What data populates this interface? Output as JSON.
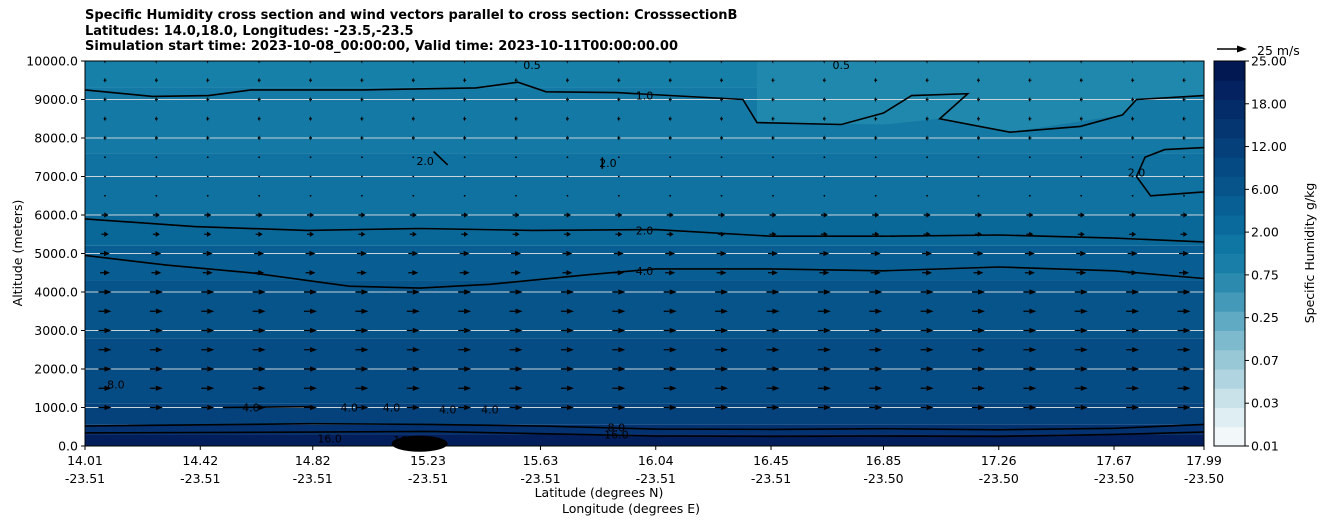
{
  "chart_data": {
    "type": "contour",
    "title_lines": [
      "Specific Humidity cross section and wind vectors parallel to cross section: CrosssectionB",
      "Latitudes: 14.0,18.0, Longitudes: -23.5,-23.5",
      "Simulation start time: 2023-10-08_00:00:00, Valid time: 2023-10-11T00:00:00.00"
    ],
    "ylabel": "Altitude (meters)",
    "xlabel_lines": [
      "Latitude (degrees N)",
      "Longitude (degrees E)"
    ],
    "ylim": [
      0,
      10000
    ],
    "y_ticks": [
      "0.0",
      "1000.0",
      "2000.0",
      "3000.0",
      "4000.0",
      "5000.0",
      "6000.0",
      "7000.0",
      "8000.0",
      "9000.0",
      "10000.0"
    ],
    "x_ticks": [
      {
        "lat": "14.01",
        "lon": "-23.51"
      },
      {
        "lat": "14.42",
        "lon": "-23.51"
      },
      {
        "lat": "14.82",
        "lon": "-23.51"
      },
      {
        "lat": "15.23",
        "lon": "-23.51"
      },
      {
        "lat": "15.63",
        "lon": "-23.51"
      },
      {
        "lat": "16.04",
        "lon": "-23.51"
      },
      {
        "lat": "16.45",
        "lon": "-23.51"
      },
      {
        "lat": "16.85",
        "lon": "-23.50"
      },
      {
        "lat": "17.26",
        "lon": "-23.50"
      },
      {
        "lat": "17.67",
        "lon": "-23.50"
      },
      {
        "lat": "17.99",
        "lon": "-23.50"
      }
    ],
    "colorbar": {
      "label": "Specific Humidity g/kg",
      "tick_labels": [
        "25.00",
        "18.00",
        "12.00",
        "6.00",
        "2.00",
        "0.75",
        "0.25",
        "0.07",
        "0.03",
        "0.01"
      ],
      "colors": [
        "#f2f8fa",
        "#dfeef2",
        "#c9e2ea",
        "#b1d5e0",
        "#98c8d6",
        "#7dbacd",
        "#60aac3",
        "#4599b8",
        "#2b8aae",
        "#1a7fa8",
        "#0f75a3",
        "#0a6a9b",
        "#085f93",
        "#07548b",
        "#064a83",
        "#05407a",
        "#053672",
        "#042c69",
        "#03225f",
        "#021853"
      ]
    },
    "wind_reference": {
      "label": "25 m/s",
      "value": 25
    },
    "contour_labels": [
      "0.5",
      "1.0",
      "2.0",
      "4.0",
      "8.0",
      "16.0"
    ],
    "contours": [
      {
        "level": 1.0,
        "label": "1.0",
        "segments": [
          [
            [
              14.01,
              9250
            ],
            [
              14.25,
              9080
            ],
            [
              14.45,
              9100
            ],
            [
              14.6,
              9250
            ],
            [
              15.0,
              9250
            ],
            [
              15.4,
              9300
            ],
            [
              15.55,
              9450
            ],
            [
              15.65,
              9200
            ],
            [
              15.9,
              9180
            ],
            [
              16.35,
              9000
            ],
            [
              16.4,
              8400
            ],
            [
              16.7,
              8350
            ],
            [
              16.85,
              8650
            ],
            [
              16.95,
              9100
            ],
            [
              17.15,
              9150
            ],
            [
              17.05,
              8500
            ],
            [
              17.3,
              8150
            ],
            [
              17.55,
              8300
            ],
            [
              17.7,
              8600
            ],
            [
              17.75,
              9000
            ],
            [
              17.99,
              9100
            ]
          ]
        ]
      },
      {
        "level": 2.0,
        "label": "2.0",
        "segments": [
          [
            [
              14.01,
              5900
            ],
            [
              14.4,
              5700
            ],
            [
              14.8,
              5600
            ],
            [
              15.2,
              5650
            ],
            [
              15.6,
              5600
            ],
            [
              16.04,
              5620
            ],
            [
              16.45,
              5450
            ],
            [
              16.85,
              5450
            ],
            [
              17.26,
              5480
            ],
            [
              17.67,
              5400
            ],
            [
              17.99,
              5300
            ]
          ],
          [
            [
              17.99,
              7750
            ],
            [
              17.85,
              7700
            ],
            [
              17.78,
              7500
            ],
            [
              17.75,
              7000
            ],
            [
              17.8,
              6500
            ],
            [
              17.99,
              6600
            ]
          ],
          [
            [
              15.25,
              7650
            ],
            [
              15.3,
              7300
            ]
          ],
          [
            [
              15.85,
              7500
            ],
            [
              15.85,
              7200
            ]
          ]
        ]
      },
      {
        "level": 4.0,
        "label": "4.0",
        "segments": [
          [
            [
              14.01,
              4950
            ],
            [
              14.3,
              4700
            ],
            [
              14.6,
              4500
            ],
            [
              14.95,
              4150
            ],
            [
              15.2,
              4100
            ],
            [
              15.45,
              4200
            ],
            [
              15.8,
              4450
            ],
            [
              16.04,
              4600
            ],
            [
              16.45,
              4600
            ],
            [
              16.85,
              4550
            ],
            [
              17.26,
              4650
            ],
            [
              17.67,
              4550
            ],
            [
              17.99,
              4350
            ]
          ],
          [
            [
              14.5,
              1000
            ],
            [
              14.82,
              1020
            ]
          ]
        ]
      },
      {
        "level": 8.0,
        "label": "8.0",
        "segments": [
          [
            [
              14.01,
              520
            ],
            [
              14.82,
              580
            ],
            [
              15.23,
              560
            ],
            [
              15.63,
              520
            ],
            [
              16.04,
              440
            ],
            [
              16.45,
              430
            ],
            [
              16.85,
              450
            ],
            [
              17.26,
              420
            ],
            [
              17.67,
              460
            ],
            [
              17.99,
              560
            ]
          ]
        ]
      },
      {
        "level": 16.0,
        "label": "16.0",
        "segments": [
          [
            [
              14.01,
              340
            ],
            [
              14.82,
              360
            ],
            [
              15.23,
              380
            ],
            [
              15.63,
              320
            ],
            [
              16.04,
              260
            ],
            [
              16.45,
              250
            ],
            [
              16.85,
              260
            ],
            [
              17.26,
              250
            ],
            [
              17.67,
              300
            ],
            [
              17.99,
              360
            ]
          ]
        ]
      }
    ]
  }
}
